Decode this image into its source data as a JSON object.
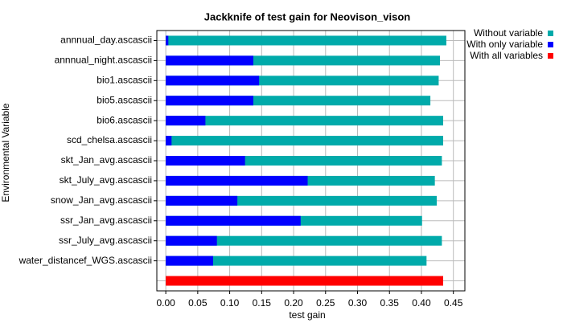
{
  "chart_data": {
    "type": "bar",
    "orientation": "horizontal",
    "title": "Jackknife of test gain for Neovison_vison",
    "x_label": "test gain",
    "y_label": "Environmental Variable",
    "categories": [
      "annnual_day.ascascii",
      "annnual_night.ascascii",
      "bio1.ascascii",
      "bio5.ascascii",
      "bio6.ascascii",
      "scd_chelsa.ascascii",
      "skt_Jan_avg.ascascii",
      "skt_July_avg.ascascii",
      "snow_Jan_avg.ascascii",
      "ssr_Jan_avg.ascascii",
      "ssr_July_avg.ascascii",
      "water_distancef_WGS.ascascii",
      null
    ],
    "series": [
      {
        "name": "Without variable",
        "color": "#00aaaa",
        "values": [
          0.439,
          0.429,
          0.427,
          0.414,
          0.434,
          0.434,
          0.432,
          0.421,
          0.424,
          0.401,
          0.432,
          0.408,
          null
        ]
      },
      {
        "name": "With only variable",
        "color": "#0000ff",
        "values": [
          0.004,
          0.137,
          0.146,
          0.137,
          0.062,
          0.009,
          0.124,
          0.222,
          0.112,
          0.211,
          0.08,
          0.074,
          null
        ]
      },
      {
        "name": "With all variables",
        "color": "#ff0000",
        "values": [
          null,
          null,
          null,
          null,
          null,
          null,
          null,
          null,
          null,
          null,
          null,
          null,
          0.434
        ]
      }
    ],
    "xlim": [
      -0.014,
      0.468
    ],
    "xticks": [
      {
        "value": 0,
        "label": "0.00"
      },
      {
        "value": 0.05,
        "label": "0.05"
      },
      {
        "value": 0.1,
        "label": "0.10"
      },
      {
        "value": 0.15,
        "label": "0.15"
      },
      {
        "value": 0.2,
        "label": "0.20"
      },
      {
        "value": 0.25,
        "label": "0.25"
      },
      {
        "value": 0.3,
        "label": "0.30"
      },
      {
        "value": 0.35,
        "label": "0.35"
      },
      {
        "value": 0.4,
        "label": "0.40"
      },
      {
        "value": 0.45,
        "label": "0.45"
      }
    ],
    "grid": true,
    "legend_position": "top-right"
  }
}
